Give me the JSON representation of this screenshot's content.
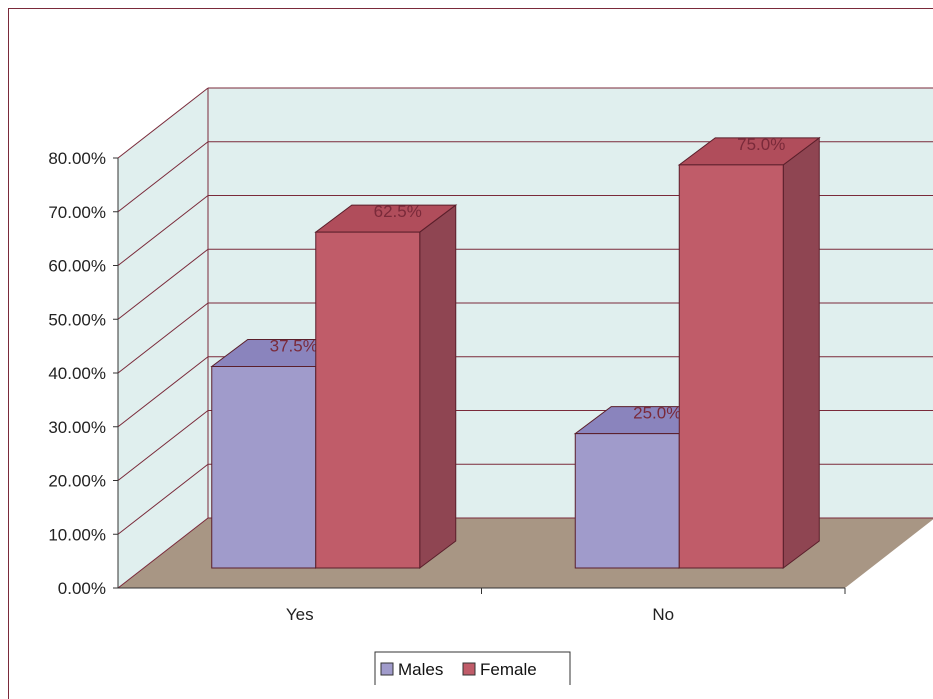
{
  "chart_data": {
    "type": "bar",
    "categories": [
      "Yes",
      "No"
    ],
    "series": [
      {
        "name": "Males",
        "values": [
          37.5,
          25.0
        ],
        "labels": [
          "37.5%",
          "25.0%"
        ]
      },
      {
        "name": "Female",
        "values": [
          62.5,
          75.0
        ],
        "labels": [
          "62.5%",
          "75.0%"
        ]
      }
    ],
    "y_ticks": [
      "0.00%",
      "10.00%",
      "20.00%",
      "30.00%",
      "40.00%",
      "50.00%",
      "60.00%",
      "70.00%",
      "80.00%"
    ],
    "ylim": [
      0,
      80
    ],
    "grid": true,
    "legend": "bottom",
    "three_d": true
  },
  "colors": {
    "males_front": "#a09bcb",
    "males_top": "#8a84bd",
    "males_side": "#7e78b0",
    "female_front": "#c05c69",
    "female_top": "#b04d5b",
    "female_side": "#8f4552",
    "back_wall": "#e0efee",
    "floor": "#a89684",
    "grid_line": "#7a2a3a"
  }
}
